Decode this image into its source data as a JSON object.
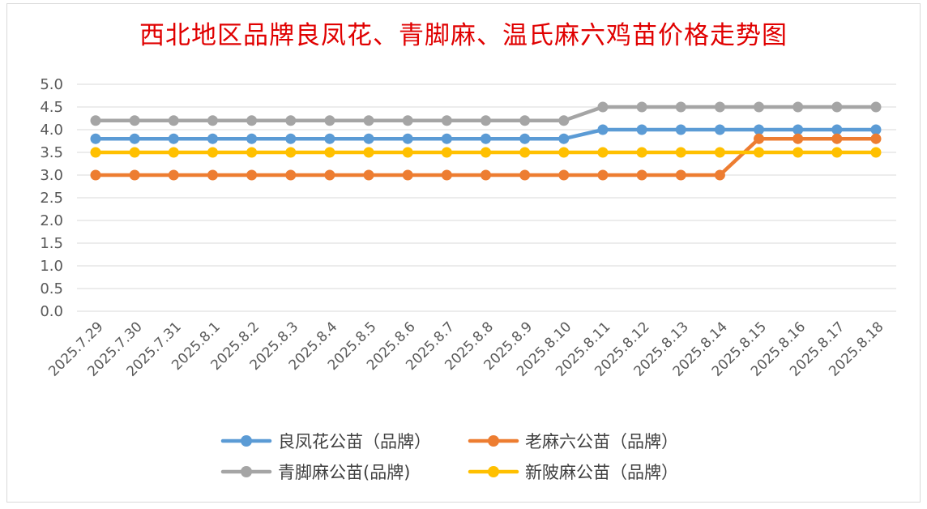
{
  "chart_data": {
    "type": "line",
    "title": "西北地区品牌良凤花、青脚麻、温氏麻六鸡苗价格走势图",
    "xlabel": "",
    "ylabel": "",
    "ylim": [
      0,
      5
    ],
    "yticks": [
      "0.0",
      "0.5",
      "1.0",
      "1.5",
      "2.0",
      "2.5",
      "3.0",
      "3.5",
      "4.0",
      "4.5",
      "5.0"
    ],
    "grid": true,
    "legend_position": "bottom",
    "categories": [
      "2025.7.29",
      "2025.7.30",
      "2025.7.31",
      "2025.8.1",
      "2025.8.2",
      "2025.8.3",
      "2025.8.4",
      "2025.8.5",
      "2025.8.6",
      "2025.8.7",
      "2025.8.8",
      "2025.8.9",
      "2025.8.10",
      "2025.8.11",
      "2025.8.12",
      "2025.8.13",
      "2025.8.14",
      "2025.8.15",
      "2025.8.16",
      "2025.8.17",
      "2025.8.18"
    ],
    "series": [
      {
        "name": "良凤花公苗（品牌）",
        "color": "#5b9bd5",
        "values": [
          3.8,
          3.8,
          3.8,
          3.8,
          3.8,
          3.8,
          3.8,
          3.8,
          3.8,
          3.8,
          3.8,
          3.8,
          3.8,
          4.0,
          4.0,
          4.0,
          4.0,
          4.0,
          4.0,
          4.0,
          4.0
        ]
      },
      {
        "name": "老麻六公苗（品牌）",
        "color": "#ed7d31",
        "values": [
          3.0,
          3.0,
          3.0,
          3.0,
          3.0,
          3.0,
          3.0,
          3.0,
          3.0,
          3.0,
          3.0,
          3.0,
          3.0,
          3.0,
          3.0,
          3.0,
          3.0,
          3.8,
          3.8,
          3.8,
          3.8
        ]
      },
      {
        "name": "青脚麻公苗(品牌)",
        "color": "#a5a5a5",
        "values": [
          4.2,
          4.2,
          4.2,
          4.2,
          4.2,
          4.2,
          4.2,
          4.2,
          4.2,
          4.2,
          4.2,
          4.2,
          4.2,
          4.5,
          4.5,
          4.5,
          4.5,
          4.5,
          4.5,
          4.5,
          4.5
        ]
      },
      {
        "name": "新陂麻公苗（品牌）",
        "color": "#ffc000",
        "values": [
          3.5,
          3.5,
          3.5,
          3.5,
          3.5,
          3.5,
          3.5,
          3.5,
          3.5,
          3.5,
          3.5,
          3.5,
          3.5,
          3.5,
          3.5,
          3.5,
          3.5,
          3.5,
          3.5,
          3.5,
          3.5
        ]
      }
    ]
  }
}
